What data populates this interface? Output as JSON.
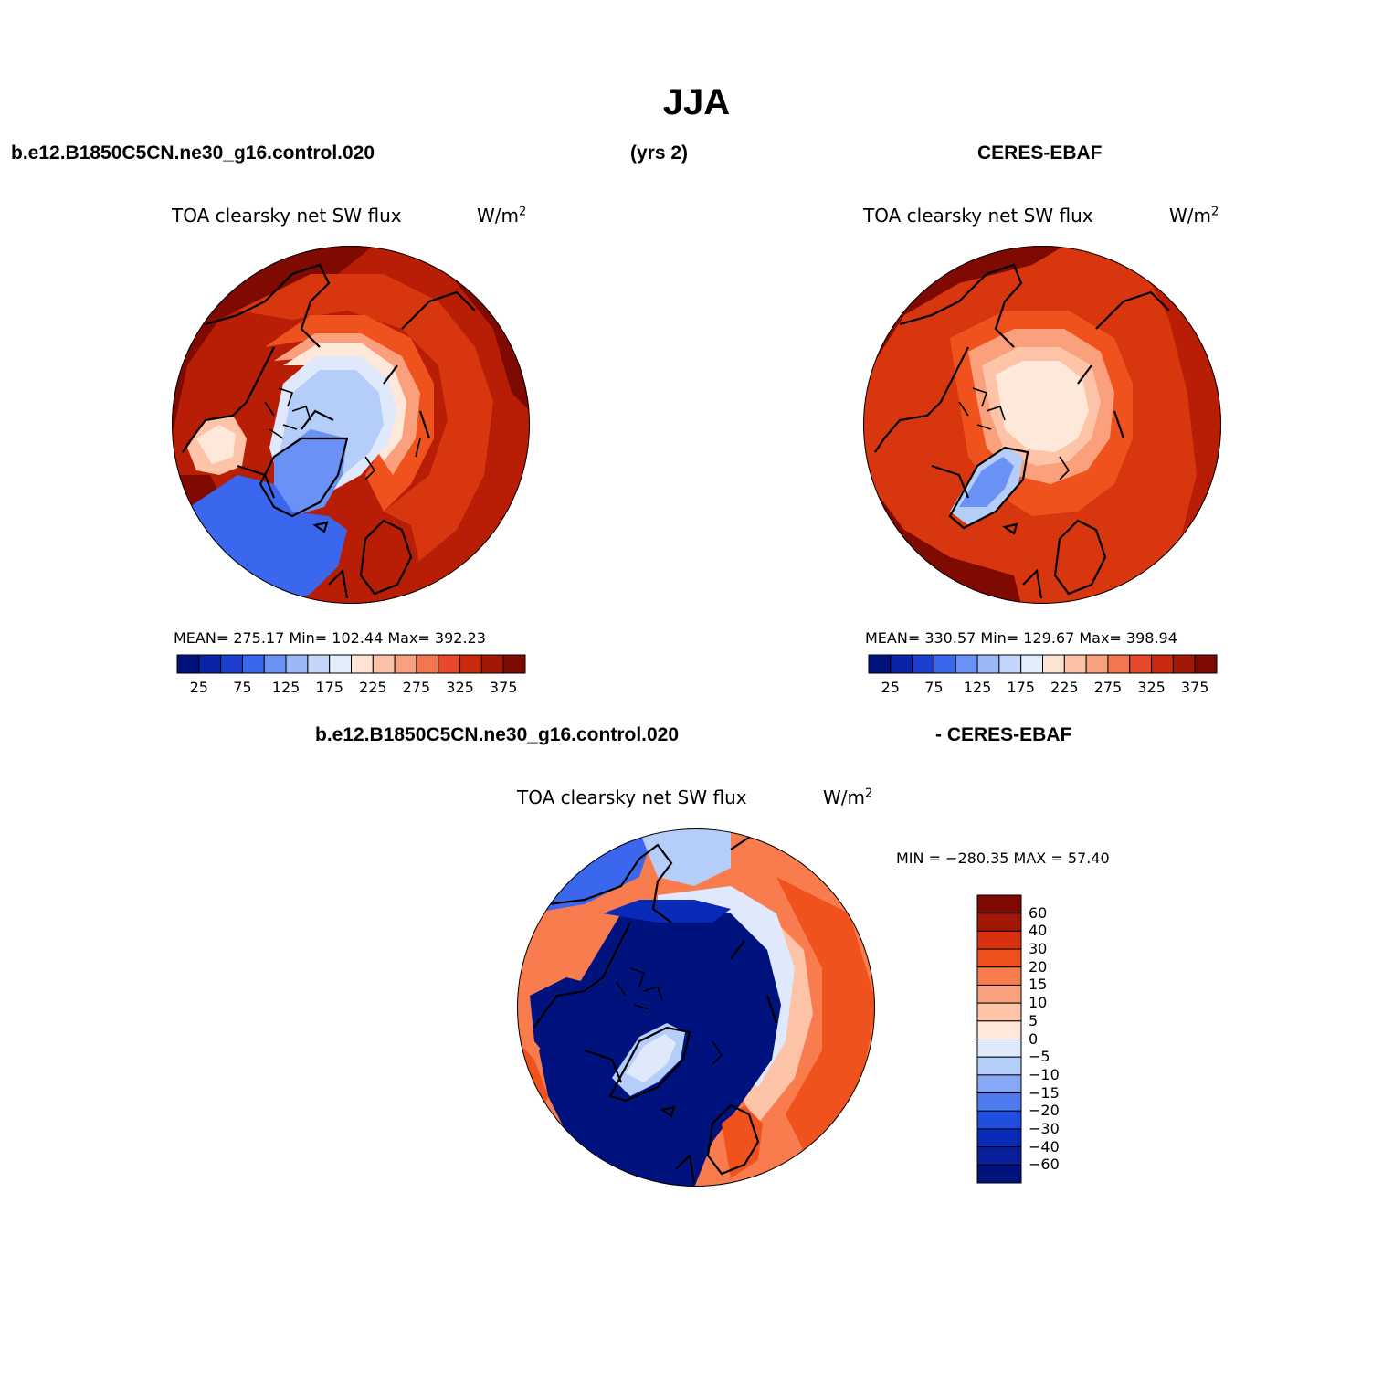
{
  "figure": {
    "title": "JJA",
    "case_label": "b.e12.B1850C5CN.ne30_g16.control.020",
    "years_label": "(yrs 2)",
    "obs_label": "CERES-EBAF",
    "diff_case_label": "b.e12.B1850C5CN.ne30_g16.control.020",
    "diff_obs_label": "- CERES-EBAF"
  },
  "panels": [
    {
      "variable": "TOA clearsky net SW flux",
      "units": "W/m",
      "units_sup": "2",
      "stats_text": "MEAN= 275.17   Min= 102.44   Max= 392.23",
      "mean": 275.17,
      "min": 102.44,
      "max": 392.23
    },
    {
      "variable": "TOA clearsky net SW flux",
      "units": "W/m",
      "units_sup": "2",
      "stats_text": "MEAN= 330.57   Min= 129.67   Max= 398.94",
      "mean": 330.57,
      "min": 129.67,
      "max": 398.94
    },
    {
      "variable": "TOA clearsky net SW flux",
      "units": "W/m",
      "units_sup": "2",
      "stats_text": "MIN = −280.35 MAX =  57.40",
      "min": -280.35,
      "max": 57.4
    }
  ],
  "colorbar_abs": {
    "tick_labels": [
      "25",
      "75",
      "125",
      "175",
      "225",
      "275",
      "325",
      "375"
    ],
    "colors": [
      "#00127e",
      "#0a24a8",
      "#1c3fd0",
      "#3b66ee",
      "#6a91f5",
      "#9ab7f7",
      "#c3d6fa",
      "#e2edfb",
      "#fde3d4",
      "#fcc2a8",
      "#f9a07e",
      "#f47650",
      "#e8492a",
      "#c92a0e",
      "#a31706",
      "#7e0a02"
    ]
  },
  "colorbar_diff": {
    "tick_labels": [
      "60",
      "40",
      "30",
      "20",
      "15",
      "10",
      "5",
      "0",
      "−5",
      "−10",
      "−15",
      "−20",
      "−30",
      "−40",
      "−60"
    ],
    "colors": [
      "#7e0a02",
      "#a31706",
      "#d8310f",
      "#f0521e",
      "#f97c4f",
      "#fba07d",
      "#fdc4a8",
      "#fee8da",
      "#dfe9fb",
      "#b5cdf9",
      "#86a8f6",
      "#4f7bf0",
      "#1f4ee0",
      "#0a2ab8",
      "#0a1f9a",
      "#00127e"
    ]
  },
  "map_colors": {
    "deep_red": "#7e0a02",
    "red": "#b81e06",
    "red_orange": "#d8360e",
    "orange": "#f0521e",
    "light_orange": "#f97c4f",
    "salmon": "#fba07d",
    "peach": "#fdc4a8",
    "cream": "#fee8da",
    "pale_blue": "#dfe9fb",
    "light_blue": "#b5cdf9",
    "mid_blue": "#6a91f5",
    "blue": "#3b66ee",
    "dark_blue": "#0a2ab8",
    "navy": "#00127e"
  }
}
